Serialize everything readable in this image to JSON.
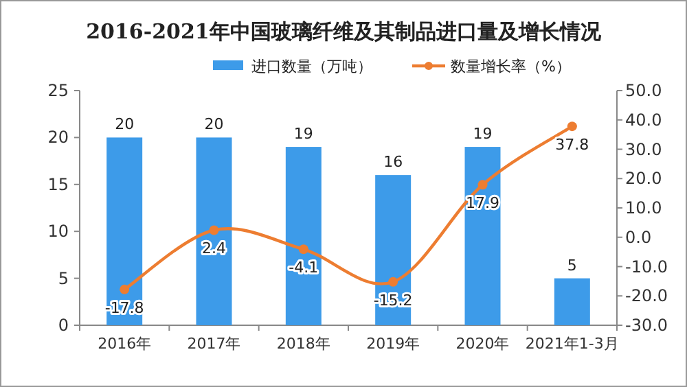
{
  "chart_data": {
    "type": "bar",
    "title": "2016-2021年中国玻璃纤维及其制品进口量及增长情况",
    "categories": [
      "2016年",
      "2017年",
      "2018年",
      "2019年",
      "2020年",
      "2021年1-3月"
    ],
    "series": [
      {
        "name": "进口数量（万吨）",
        "color": "#3d9be9",
        "values": [
          20,
          20,
          19,
          16,
          19,
          5
        ]
      },
      {
        "name": "数量增长率（%）",
        "type": "line",
        "axis": "y2",
        "color": "#ed7d31",
        "marker": "circle",
        "values": [
          -17.8,
          2.4,
          -4.1,
          -15.2,
          17.9,
          37.8
        ]
      }
    ],
    "ylim": [
      0,
      25
    ],
    "yticks": [
      0,
      5,
      10,
      15,
      20,
      25
    ],
    "y2lim": [
      -30,
      50
    ],
    "y2ticks": [
      {
        "value": -30,
        "label": "-30.0"
      },
      {
        "value": -20,
        "label": "-20.0"
      },
      {
        "value": -10,
        "label": "-10.0"
      },
      {
        "value": 0,
        "label": "0.0"
      },
      {
        "value": 10,
        "label": "10.0"
      },
      {
        "value": 20,
        "label": "20.0"
      },
      {
        "value": 30,
        "label": "30.0"
      },
      {
        "value": 40,
        "label": "40.0"
      },
      {
        "value": 50,
        "label": "50.0"
      }
    ],
    "data_labels": true,
    "legend": "top",
    "grid": false
  }
}
